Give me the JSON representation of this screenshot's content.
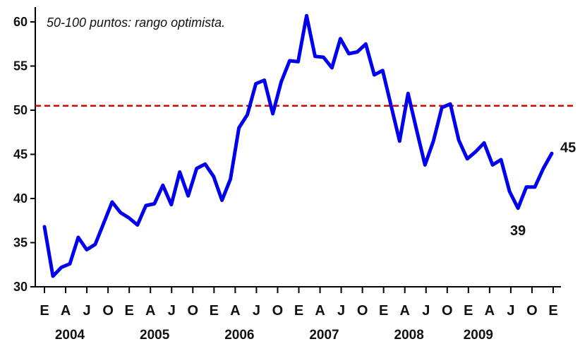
{
  "chart_data": {
    "type": "line",
    "title": "",
    "xlabel": "",
    "ylabel": "",
    "annotation": "50-100 puntos: rango optimista.",
    "ylim": [
      30,
      62
    ],
    "yticks": [
      30,
      35,
      40,
      45,
      50,
      55,
      60
    ],
    "grid": false,
    "reference_line": {
      "y": 50.5,
      "color": "#dd0000",
      "style": "dashed"
    },
    "x_month_labels": [
      "E",
      "A",
      "J",
      "O",
      "E",
      "A",
      "J",
      "O",
      "E",
      "A",
      "J",
      "O",
      "E",
      "A",
      "J",
      "O",
      "E",
      "A",
      "J",
      "O",
      "E",
      "A",
      "J",
      "O",
      "E"
    ],
    "x_year_labels": [
      "2004",
      "2005",
      "2006",
      "2007",
      "2008",
      "2009"
    ],
    "series": [
      {
        "color": "#0000ee",
        "values": [
          36.8,
          31.2,
          32.2,
          32.6,
          35.6,
          34.2,
          34.8,
          37.2,
          39.6,
          38.4,
          37.8,
          37.0,
          39.2,
          39.4,
          41.5,
          39.3,
          43.0,
          40.3,
          43.4,
          43.9,
          42.5,
          39.8,
          42.2,
          48.0,
          49.5,
          53.0,
          53.4,
          49.6,
          53.2,
          55.6,
          55.5,
          60.7,
          56.1,
          56.0,
          54.8,
          58.1,
          56.4,
          56.6,
          57.5,
          54.0,
          54.5,
          50.5,
          46.5,
          51.9,
          47.8,
          43.8,
          46.5,
          50.3,
          50.7,
          46.6,
          44.5,
          45.3,
          46.3,
          43.8,
          44.4,
          40.8,
          38.9,
          41.3,
          41.3,
          43.4,
          45.1
        ]
      }
    ],
    "point_labels": [
      {
        "index": 56,
        "text": "39"
      },
      {
        "index": 60,
        "text": "45"
      }
    ]
  }
}
